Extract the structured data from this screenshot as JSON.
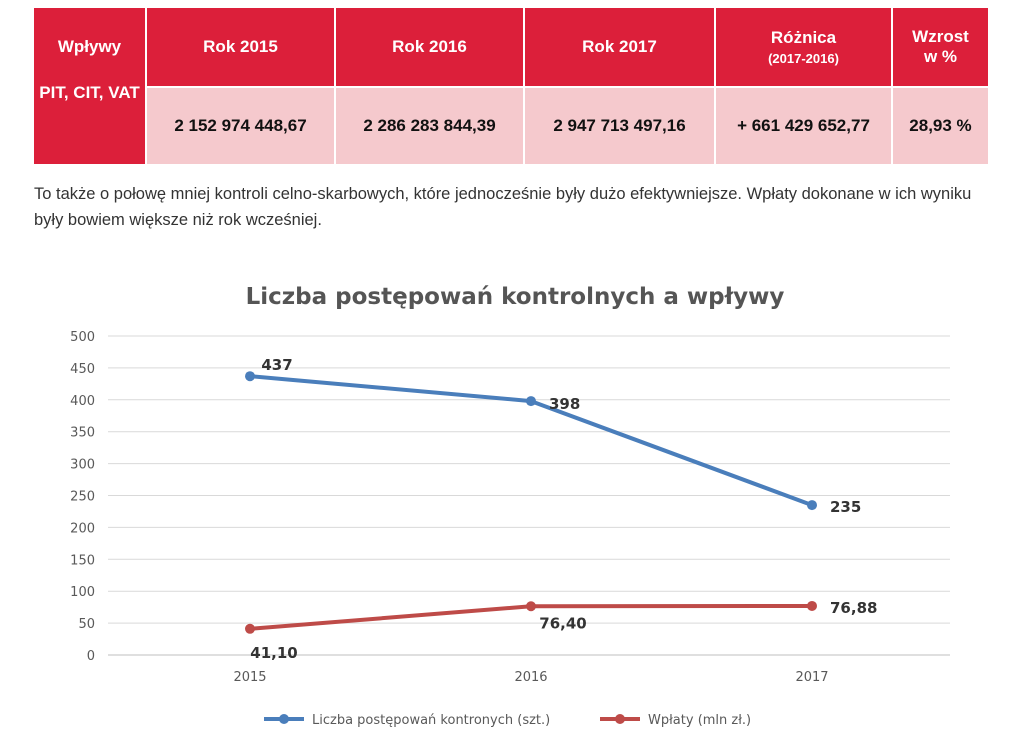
{
  "table": {
    "row_label": "PIT, CIT, VAT",
    "headers": {
      "col0": "Wpływy",
      "col1": "Rok 2015",
      "col2": "Rok 2016",
      "col3": "Rok 2017",
      "col4": "Różnica",
      "col4_sub": "(2017-2016)",
      "col5a": "Wzrost",
      "col5b": "w %"
    },
    "values": {
      "v2015": "2 152 974 448,67",
      "v2016": "2 286 283 844,39",
      "v2017": "2 947 713 497,16",
      "diff": "+ 661 429 652,77",
      "growth": "28,93 %"
    },
    "colors": {
      "header_bg": "#dc1f3a",
      "value_bg": "#f5c9cd"
    }
  },
  "paragraph": "To także o połowę mniej kontroli celno-skarbowych, które jednocześnie były dużo efektywniejsze. Wpłaty dokonane w ich wyniku były bowiem większe niż rok wcześniej.",
  "chart_data": {
    "type": "line",
    "title": "Liczba postępowań kontrolnych a wpływy",
    "xlabel": "",
    "ylabel": "",
    "categories": [
      "2015",
      "2016",
      "2017"
    ],
    "ylim": [
      0,
      500
    ],
    "yticks": [
      0,
      50,
      100,
      150,
      200,
      250,
      300,
      350,
      400,
      450,
      500
    ],
    "grid": true,
    "legend_position": "bottom",
    "series": [
      {
        "name": "Liczba postępowań kontronych (szt.)",
        "values": [
          437,
          398,
          235
        ],
        "labels": [
          "437",
          "398",
          "235"
        ],
        "color": "#4a7ebb"
      },
      {
        "name": "Wpłaty (mln zł.)",
        "values": [
          41.1,
          76.4,
          76.88
        ],
        "labels": [
          "41,10",
          "76,40",
          "76,88"
        ],
        "color": "#be4b48"
      }
    ]
  }
}
